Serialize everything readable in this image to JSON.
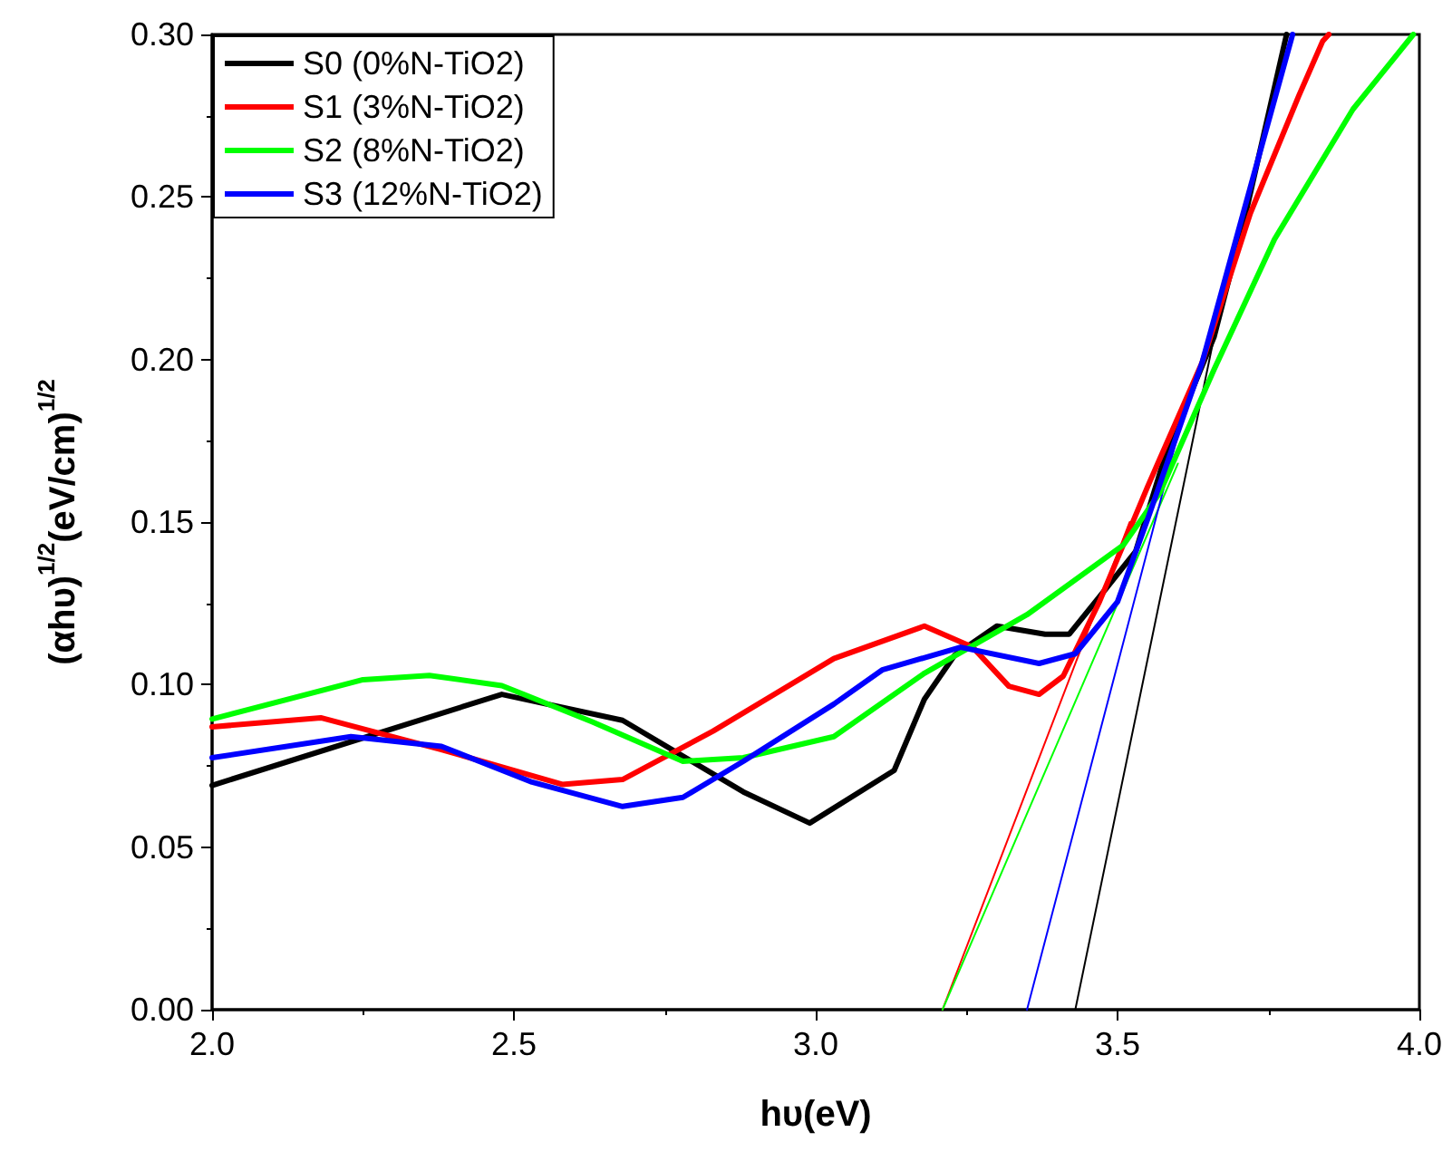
{
  "chart_data": {
    "type": "line",
    "xlabel": "hυ(eV)",
    "ylabel": "(αhυ)$^{1/2}$(eV/cm)$^{1/2}$",
    "xlim": [
      2.0,
      4.0
    ],
    "ylim": [
      0,
      0.3
    ],
    "xticks": [
      {
        "value": 2,
        "label": "2.0"
      },
      {
        "value": 2.5,
        "label": "2.5"
      },
      {
        "value": 3,
        "label": "3.0"
      },
      {
        "value": 3.5,
        "label": "3.5"
      },
      {
        "value": 4,
        "label": "4.0"
      }
    ],
    "yticks": [
      {
        "value": 0,
        "label": "0.00"
      },
      {
        "value": 0.05,
        "label": "0.05"
      },
      {
        "value": 0.1,
        "label": "0.10"
      },
      {
        "value": 0.15,
        "label": "0.15"
      },
      {
        "value": 0.2,
        "label": "0.20"
      },
      {
        "value": 0.25,
        "label": "0.25"
      },
      {
        "value": 0.3,
        "label": "0.30"
      }
    ],
    "grid": false,
    "legend": "top left",
    "marker": "none",
    "line_style": "solid",
    "series": [
      {
        "name": "S0 (0%N-TiO2)",
        "color": "#000000",
        "x": [
          2.0,
          2.48,
          2.68,
          2.88,
          2.99,
          3.13,
          3.18,
          3.23,
          3.3,
          3.38,
          3.42,
          3.47,
          3.53,
          3.58,
          3.66,
          3.71,
          3.78
        ],
        "values": [
          0.069,
          0.097,
          0.089,
          0.067,
          0.0574,
          0.0736,
          0.0955,
          0.109,
          0.118,
          0.1155,
          0.1155,
          0.127,
          0.141,
          0.171,
          0.207,
          0.243,
          0.3
        ]
      },
      {
        "name": "S1 (3%N-TiO2)",
        "color": "#ff0000",
        "x": [
          2.0,
          2.18,
          2.38,
          2.58,
          2.68,
          2.83,
          3.03,
          3.18,
          3.26,
          3.32,
          3.37,
          3.41,
          3.47,
          3.55,
          3.64,
          3.72,
          3.8,
          3.84,
          3.85
        ],
        "values": [
          0.087,
          0.0898,
          0.08,
          0.0693,
          0.0708,
          0.0857,
          0.108,
          0.118,
          0.1115,
          0.0995,
          0.097,
          0.1026,
          0.1255,
          0.161,
          0.199,
          0.245,
          0.281,
          0.298,
          0.3
        ]
      },
      {
        "name": "S2 (8%N-TiO2)",
        "color": "#00ff00",
        "x": [
          2.0,
          2.25,
          2.36,
          2.48,
          2.63,
          2.78,
          2.88,
          3.03,
          3.18,
          3.35,
          3.51,
          3.57,
          3.66,
          3.76,
          3.89,
          3.99
        ],
        "values": [
          0.0894,
          0.1015,
          0.1028,
          0.0997,
          0.0885,
          0.0764,
          0.0775,
          0.084,
          0.1035,
          0.1215,
          0.143,
          0.159,
          0.197,
          0.237,
          0.277,
          0.3
        ]
      },
      {
        "name": "S3 (12%N-TiO2)",
        "color": "#0000ff",
        "x": [
          2.0,
          2.23,
          2.38,
          2.53,
          2.68,
          2.78,
          2.88,
          3.03,
          3.11,
          3.24,
          3.37,
          3.43,
          3.5,
          3.55,
          3.64,
          3.72,
          3.79
        ],
        "values": [
          0.0775,
          0.084,
          0.081,
          0.07,
          0.0625,
          0.0653,
          0.0764,
          0.094,
          0.1045,
          0.1115,
          0.1065,
          0.1095,
          0.1255,
          0.151,
          0.199,
          0.253,
          0.3
        ]
      },
      {
        "type": "line",
        "color": "#000000",
        "x": [
          3.43,
          3.66
        ],
        "values": [
          0,
          0.207
        ]
      },
      {
        "type": "line",
        "color": "#ff0000",
        "x": [
          3.21,
          3.52
        ],
        "values": [
          0,
          0.15
        ]
      },
      {
        "type": "line",
        "color": "#00ff00",
        "x": [
          3.21,
          3.6
        ],
        "values": [
          0,
          0.168
        ]
      },
      {
        "type": "line",
        "color": "#0000ff",
        "x": [
          3.35,
          3.6
        ],
        "values": [
          0,
          0.177
        ]
      }
    ]
  }
}
